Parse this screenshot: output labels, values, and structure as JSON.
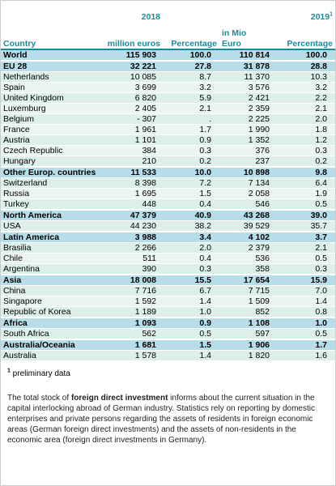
{
  "header": {
    "year_2018": "2018",
    "year_2019": "2019",
    "year_2019_note": "1",
    "country_label": "Country",
    "col_2018_amount": "million euros",
    "col_2018_pct": "Percentage",
    "col_2019_amount_line1": "in Mio",
    "col_2019_amount_line2": "Euro",
    "col_2019_pct": "Percentage"
  },
  "rows": [
    {
      "country": "World",
      "v2018": "115 903",
      "p2018": "100.0",
      "v2019": "110 814",
      "p2019": "100.0",
      "kind": "world"
    },
    {
      "country": "EU 28",
      "v2018": "32 221",
      "p2018": "27.8",
      "v2019": "31 878",
      "p2019": "28.8",
      "kind": "group"
    },
    {
      "country": "Netherlands",
      "v2018": "10 085",
      "p2018": "8.7",
      "v2019": "11 370",
      "p2019": "10.3",
      "kind": "sub"
    },
    {
      "country": "Spain",
      "v2018": "3 699",
      "p2018": "3.2",
      "v2019": "3 576",
      "p2019": "3.2",
      "kind": "sub"
    },
    {
      "country": "United Kingdom",
      "v2018": "6 820",
      "p2018": "5.9",
      "v2019": "2 421",
      "p2019": "2.2",
      "kind": "sub"
    },
    {
      "country": "Luxemburg",
      "v2018": "2 405",
      "p2018": "2.1",
      "v2019": "2 359",
      "p2019": "2.1",
      "kind": "sub"
    },
    {
      "country": "Belgium",
      "v2018": "-   307",
      "p2018": ".",
      "v2019": "2 225",
      "p2019": "2.0",
      "kind": "sub"
    },
    {
      "country": "France",
      "v2018": "1 961",
      "p2018": "1.7",
      "v2019": "1 990",
      "p2019": "1.8",
      "kind": "sub"
    },
    {
      "country": "Austria",
      "v2018": "1 101",
      "p2018": "0.9",
      "v2019": "1 352",
      "p2019": "1.2",
      "kind": "sub"
    },
    {
      "country": "Czech Republic",
      "v2018": "384",
      "p2018": "0.3",
      "v2019": "376",
      "p2019": "0.3",
      "kind": "sub"
    },
    {
      "country": "Hungary",
      "v2018": "210",
      "p2018": "0.2",
      "v2019": "237",
      "p2019": "0.2",
      "kind": "sub"
    },
    {
      "country": "Other Europ. countries",
      "v2018": "11 533",
      "p2018": "10.0",
      "v2019": "10 898",
      "p2019": "9.8",
      "kind": "group"
    },
    {
      "country": "Switzerland",
      "v2018": "8 398",
      "p2018": "7.2",
      "v2019": "7 134",
      "p2019": "6.4",
      "kind": "sub"
    },
    {
      "country": "Russia",
      "v2018": "1 695",
      "p2018": "1.5",
      "v2019": "2 058",
      "p2019": "1.9",
      "kind": "sub"
    },
    {
      "country": "Turkey",
      "v2018": "448",
      "p2018": "0.4",
      "v2019": "546",
      "p2019": "0.5",
      "kind": "sub"
    },
    {
      "country": "North America",
      "v2018": "47 379",
      "p2018": "40.9",
      "v2019": "43 268",
      "p2019": "39.0",
      "kind": "group"
    },
    {
      "country": "USA",
      "v2018": "44 230",
      "p2018": "38.2",
      "v2019": "39 529",
      "p2019": "35.7",
      "kind": "sub"
    },
    {
      "country": "Latin America",
      "v2018": "3 988",
      "p2018": "3.4",
      "v2019": "4 102",
      "p2019": "3.7",
      "kind": "group"
    },
    {
      "country": "Brasilia",
      "v2018": "2 266",
      "p2018": "2.0",
      "v2019": "2 379",
      "p2019": "2.1",
      "kind": "sub"
    },
    {
      "country": "Chile",
      "v2018": "511",
      "p2018": "0.4",
      "v2019": "536",
      "p2019": "0.5",
      "kind": "sub"
    },
    {
      "country": "Argentina",
      "v2018": "390",
      "p2018": "0.3",
      "v2019": "358",
      "p2019": "0.3",
      "kind": "sub"
    },
    {
      "country": "Asia",
      "v2018": "18 008",
      "p2018": "15.5",
      "v2019": "17 654",
      "p2019": "15.9",
      "kind": "group"
    },
    {
      "country": "China",
      "v2018": "7 716",
      "p2018": "6.7",
      "v2019": "7 715",
      "p2019": "7.0",
      "kind": "sub"
    },
    {
      "country": "Singapore",
      "v2018": "1 592",
      "p2018": "1.4",
      "v2019": "1 509",
      "p2019": "1.4",
      "kind": "sub"
    },
    {
      "country": "Republic of Korea",
      "v2018": "1 189",
      "p2018": "1.0",
      "v2019": "852",
      "p2019": "0.8",
      "kind": "sub"
    },
    {
      "country": "Africa",
      "v2018": "1 093",
      "p2018": "0.9",
      "v2019": "1 108",
      "p2019": "1.0",
      "kind": "group"
    },
    {
      "country": "South Africa",
      "v2018": "562",
      "p2018": "0.5",
      "v2019": "597",
      "p2019": "0.5",
      "kind": "sub"
    },
    {
      "country": "Australia/Oceania",
      "v2018": "1 681",
      "p2018": "1.5",
      "v2019": "1 906",
      "p2019": "1.7",
      "kind": "group"
    },
    {
      "country": "Australia",
      "v2018": "1 578",
      "p2018": "1.4",
      "v2019": "1 820",
      "p2019": "1.6",
      "kind": "sub"
    }
  ],
  "footnote": {
    "marker": "1",
    "text": " preliminary data"
  },
  "description": {
    "part1": "The total stock of ",
    "bold": "foreign direct investment",
    "part2": " informs about the current situation in the capital interlocking abroad of German industry. Statistics rely on reporting by domestic enterprises and private persons regarding the assets of residents in foreign economic areas (German foreign direct investments) and the assets of non-residents in the economic area (foreign direct investments in Germany)."
  },
  "colors": {
    "header_text": "#1a8a9a",
    "group_bg": "#b7dee8",
    "sub_bg": "#dcefe9"
  }
}
